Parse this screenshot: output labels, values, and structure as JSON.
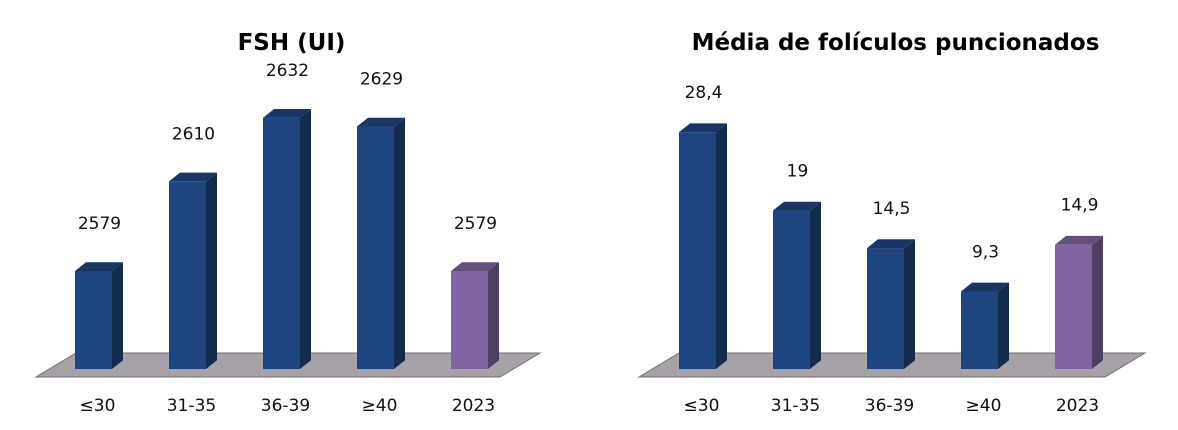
{
  "chart_data": [
    {
      "type": "bar",
      "title": "FSH (UI)",
      "categories": [
        "≤30",
        "31-35",
        "36-39",
        "≥40",
        "2023"
      ],
      "values": [
        2579,
        2610,
        2632,
        2629,
        2579
      ],
      "value_labels": [
        "2579",
        "2610",
        "2632",
        "2629",
        "2579"
      ],
      "colors": [
        "#1f4580",
        "#1f4580",
        "#1f4580",
        "#1f4580",
        "#8064a2"
      ],
      "style": "3d-column",
      "grid": false,
      "legend": "none"
    },
    {
      "type": "bar",
      "title": "Média de folículos puncionados",
      "categories": [
        "≤30",
        "31-35",
        "36-39",
        "≥40",
        "2023"
      ],
      "values": [
        28.4,
        19,
        14.5,
        9.3,
        14.9
      ],
      "value_labels": [
        "28,4",
        "19",
        "14,5",
        "9,3",
        "14,9"
      ],
      "colors": [
        "#1f4580",
        "#1f4580",
        "#1f4580",
        "#1f4580",
        "#8064a2"
      ],
      "style": "3d-column",
      "grid": false,
      "legend": "none"
    }
  ]
}
